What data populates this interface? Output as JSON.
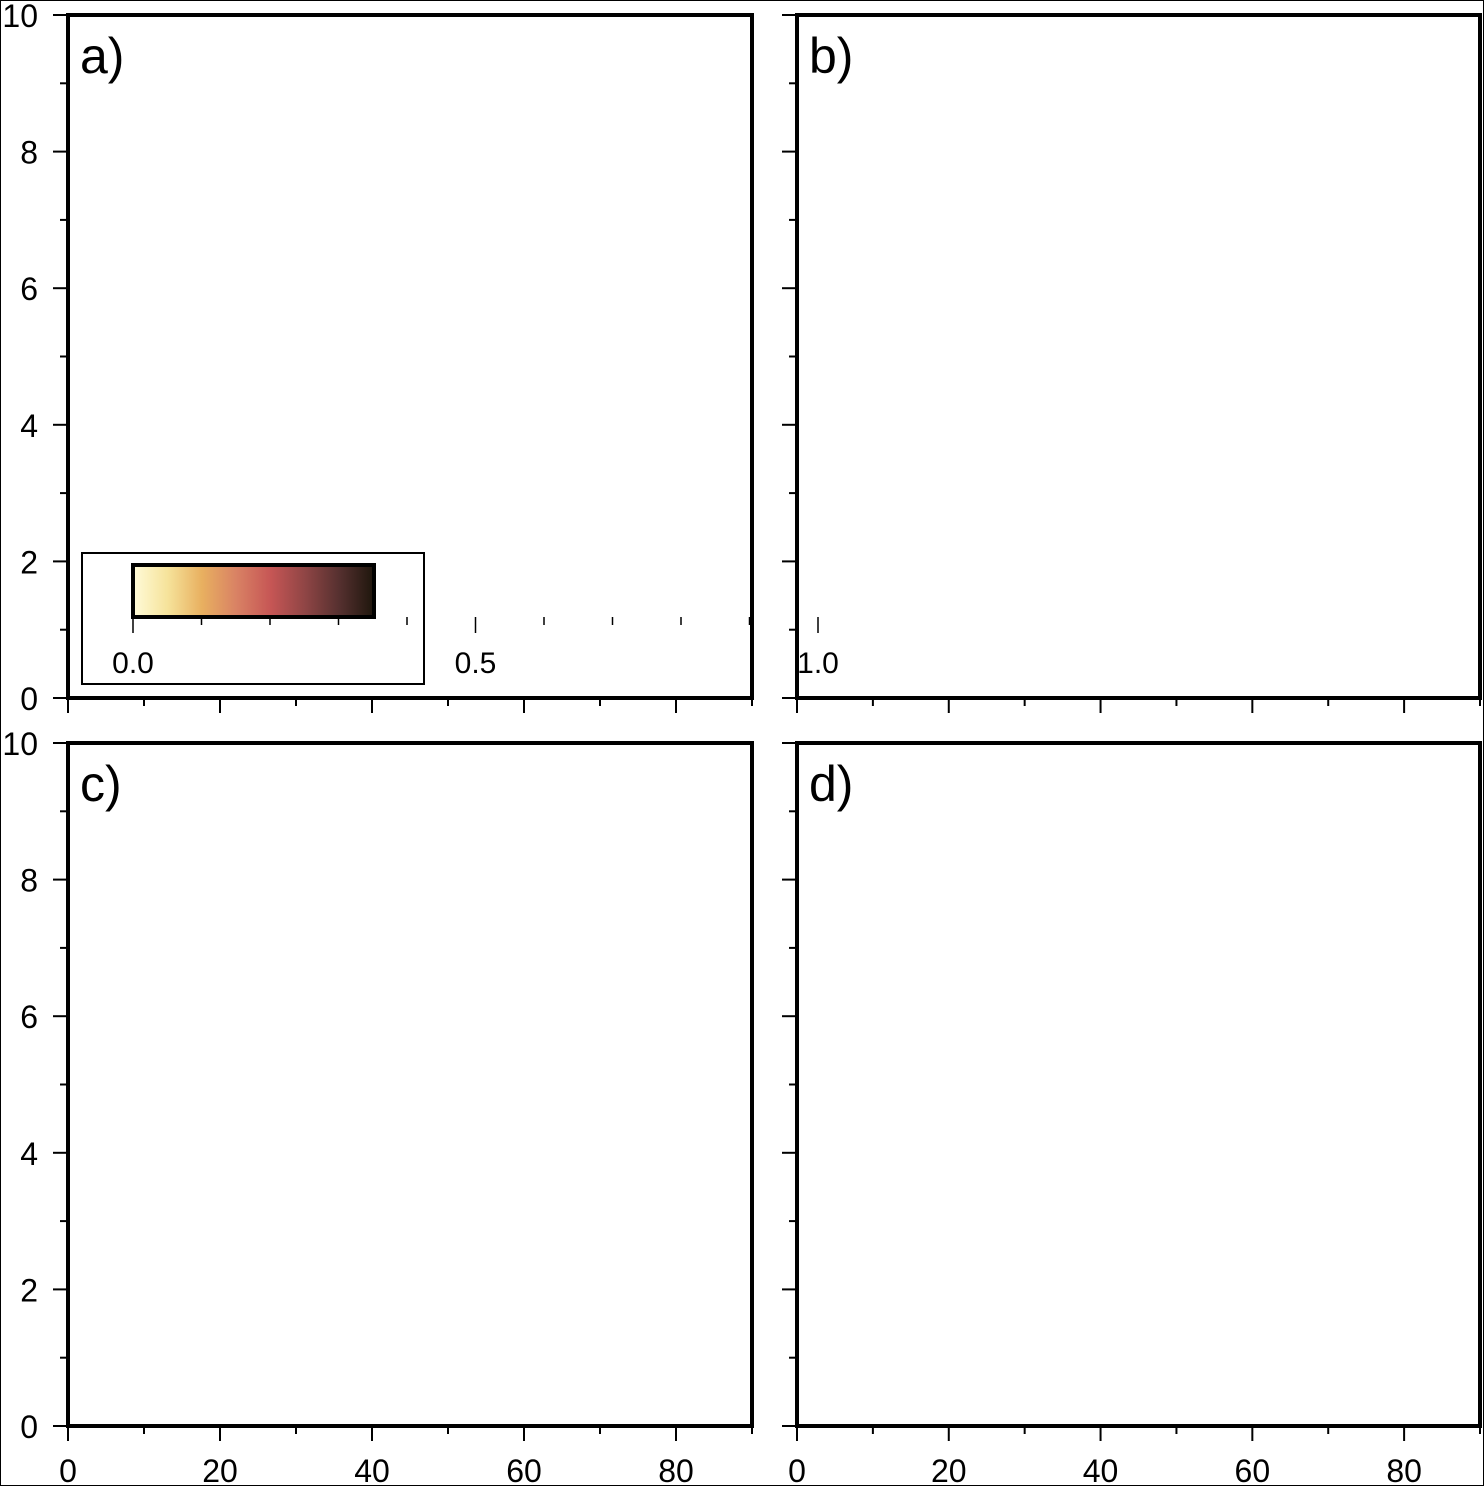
{
  "chart_data": [
    {
      "panel": "a",
      "type": "scatter",
      "label": "a)",
      "title": "",
      "xlabel": "",
      "ylabel": "",
      "xlim": [
        0,
        90
      ],
      "ylim": [
        0,
        10
      ],
      "x_major_ticks": [
        0,
        20,
        40,
        60,
        80
      ],
      "x_minor_ticks": [
        10,
        30,
        50,
        70,
        90
      ],
      "y_major_ticks": [
        0,
        2,
        4,
        6,
        8,
        10
      ],
      "y_minor_ticks": [
        1,
        3,
        5,
        7,
        9
      ],
      "x_tick_labels": [],
      "y_tick_labels": [
        "0",
        "2",
        "4",
        "6",
        "8",
        "10"
      ],
      "series": [],
      "grid": false,
      "colorbar": {
        "colormap": [
          "#fffbd9",
          "#f6e39b",
          "#e8b060",
          "#d98264",
          "#c65655",
          "#8f4545",
          "#55302f",
          "#1e160c"
        ],
        "range": [
          0,
          1
        ],
        "major_ticks": [
          0,
          0.5,
          1
        ],
        "minor_ticks": [
          0.1,
          0.2,
          0.3,
          0.4,
          0.6,
          0.7,
          0.8,
          0.9
        ],
        "tick_labels": [
          "0.0",
          "0.5",
          "1.0"
        ],
        "position": "bottom-left"
      }
    },
    {
      "panel": "b",
      "type": "scatter",
      "label": "b)",
      "title": "",
      "xlabel": "",
      "ylabel": "",
      "xlim": [
        0,
        90
      ],
      "ylim": [
        0,
        10
      ],
      "x_major_ticks": [
        0,
        20,
        40,
        60,
        80
      ],
      "x_minor_ticks": [
        10,
        30,
        50,
        70,
        90
      ],
      "y_major_ticks": [
        0,
        2,
        4,
        6,
        8,
        10
      ],
      "y_minor_ticks": [
        1,
        3,
        5,
        7,
        9
      ],
      "x_tick_labels": [],
      "y_tick_labels": [],
      "series": [],
      "grid": false
    },
    {
      "panel": "c",
      "type": "scatter",
      "label": "c)",
      "title": "",
      "xlabel": "",
      "ylabel": "",
      "xlim": [
        0,
        90
      ],
      "ylim": [
        0,
        10
      ],
      "x_major_ticks": [
        0,
        20,
        40,
        60,
        80
      ],
      "x_minor_ticks": [
        10,
        30,
        50,
        70,
        90
      ],
      "y_major_ticks": [
        0,
        2,
        4,
        6,
        8,
        10
      ],
      "y_minor_ticks": [
        1,
        3,
        5,
        7,
        9
      ],
      "x_tick_labels": [
        "0",
        "20",
        "40",
        "60",
        "80"
      ],
      "y_tick_labels": [
        "0",
        "2",
        "4",
        "6",
        "8",
        "10"
      ],
      "series": [],
      "grid": false
    },
    {
      "panel": "d",
      "type": "scatter",
      "label": "d)",
      "title": "",
      "xlabel": "",
      "ylabel": "",
      "xlim": [
        0,
        90
      ],
      "ylim": [
        0,
        10
      ],
      "x_major_ticks": [
        0,
        20,
        40,
        60,
        80
      ],
      "x_minor_ticks": [
        10,
        30,
        50,
        70,
        90
      ],
      "y_major_ticks": [
        0,
        2,
        4,
        6,
        8,
        10
      ],
      "y_minor_ticks": [
        1,
        3,
        5,
        7,
        9
      ],
      "x_tick_labels": [
        "0",
        "20",
        "40",
        "60",
        "80"
      ],
      "y_tick_labels": [],
      "series": [],
      "grid": false
    }
  ]
}
